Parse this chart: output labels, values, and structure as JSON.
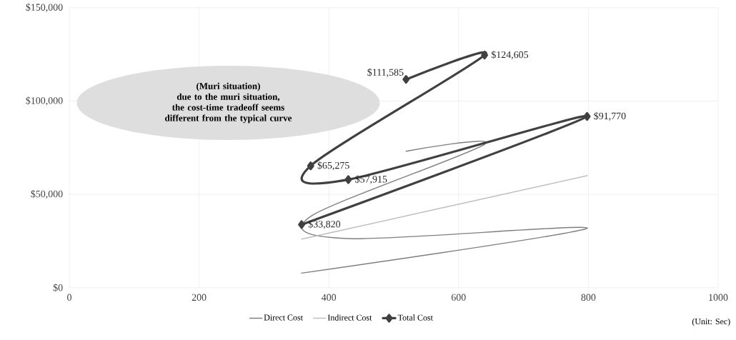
{
  "chart_data": {
    "type": "line",
    "xlabel": "(Unit: Sec)",
    "annotations": [
      "(Muri situation)",
      "due to the muri situation, the cost-time tradeoff seems different from the typical curve"
    ],
    "x": [
      519,
      640,
      372,
      430,
      798,
      358
    ],
    "series": [
      {
        "name": "Direct Cost",
        "color": "#7f7f7f",
        "values": [
          73100,
          76800,
          38200,
          26300,
          31800,
          7800
        ]
      },
      {
        "name": "Indirect Cost",
        "color": "#bfbfbf",
        "values": [
          38500,
          47800,
          27100,
          31600,
          60000,
          26000
        ]
      },
      {
        "name": "Total Cost",
        "color": "#404040",
        "marker": "diamond",
        "values": [
          111585,
          124605,
          65275,
          57915,
          91770,
          33820
        ],
        "value_labels": [
          "$111,585",
          "$124,605",
          "$65,275",
          "$57,915",
          "$91,770",
          "$33,820"
        ]
      }
    ],
    "xlim": [
      0,
      1000
    ],
    "xticks": [
      0,
      200,
      400,
      600,
      800,
      1000
    ],
    "ylim": [
      0,
      150000
    ],
    "yticks": [
      {
        "value": 0,
        "label": "$0"
      },
      {
        "value": 50000,
        "label": "$50,000"
      },
      {
        "value": 100000,
        "label": "$100,000"
      },
      {
        "value": 150000,
        "label": "$150,000"
      }
    ],
    "grid": true,
    "legend": "bottom",
    "marker": "none",
    "line_style": "solid"
  }
}
